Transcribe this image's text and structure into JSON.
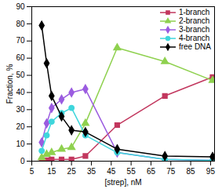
{
  "chart_data": {
    "type": "line",
    "x_label": "[strep], nM",
    "y_label": "Fraction, %",
    "x": [
      10,
      12.5,
      15,
      20,
      25,
      32,
      48,
      72,
      96
    ],
    "series": [
      {
        "name": "1-branch",
        "color": "#c2375e",
        "marker": "square",
        "values": [
          0,
          0.5,
          1,
          1,
          1,
          3,
          21,
          38,
          49
        ]
      },
      {
        "name": "2-branch",
        "color": "#8fd14f",
        "marker": "triangle",
        "values": [
          2,
          4,
          5,
          7,
          8,
          22,
          66,
          58,
          47
        ]
      },
      {
        "name": "3-branch",
        "color": "#9b5ce0",
        "marker": "diamond",
        "values": [
          11,
          22,
          31,
          36,
          40,
          42,
          5,
          1,
          0.5
        ]
      },
      {
        "name": "4-branch",
        "color": "#3fd6dc",
        "marker": "circle",
        "values": [
          6,
          15,
          23,
          28,
          31,
          15,
          5,
          1,
          0.5
        ]
      },
      {
        "name": "free DNA",
        "color": "#000000",
        "marker": "diamond",
        "values": [
          79,
          57,
          38,
          26,
          18,
          17,
          7,
          3,
          2.5
        ]
      }
    ],
    "xlim": [
      5,
      97
    ],
    "xticks": [
      5,
      15,
      25,
      35,
      45,
      55,
      65,
      75,
      85,
      95
    ],
    "ylim": [
      0,
      90
    ],
    "yticks": [
      0,
      10,
      20,
      30,
      40,
      50,
      60,
      70,
      80,
      90
    ],
    "grid": false,
    "legend": "top-right"
  }
}
